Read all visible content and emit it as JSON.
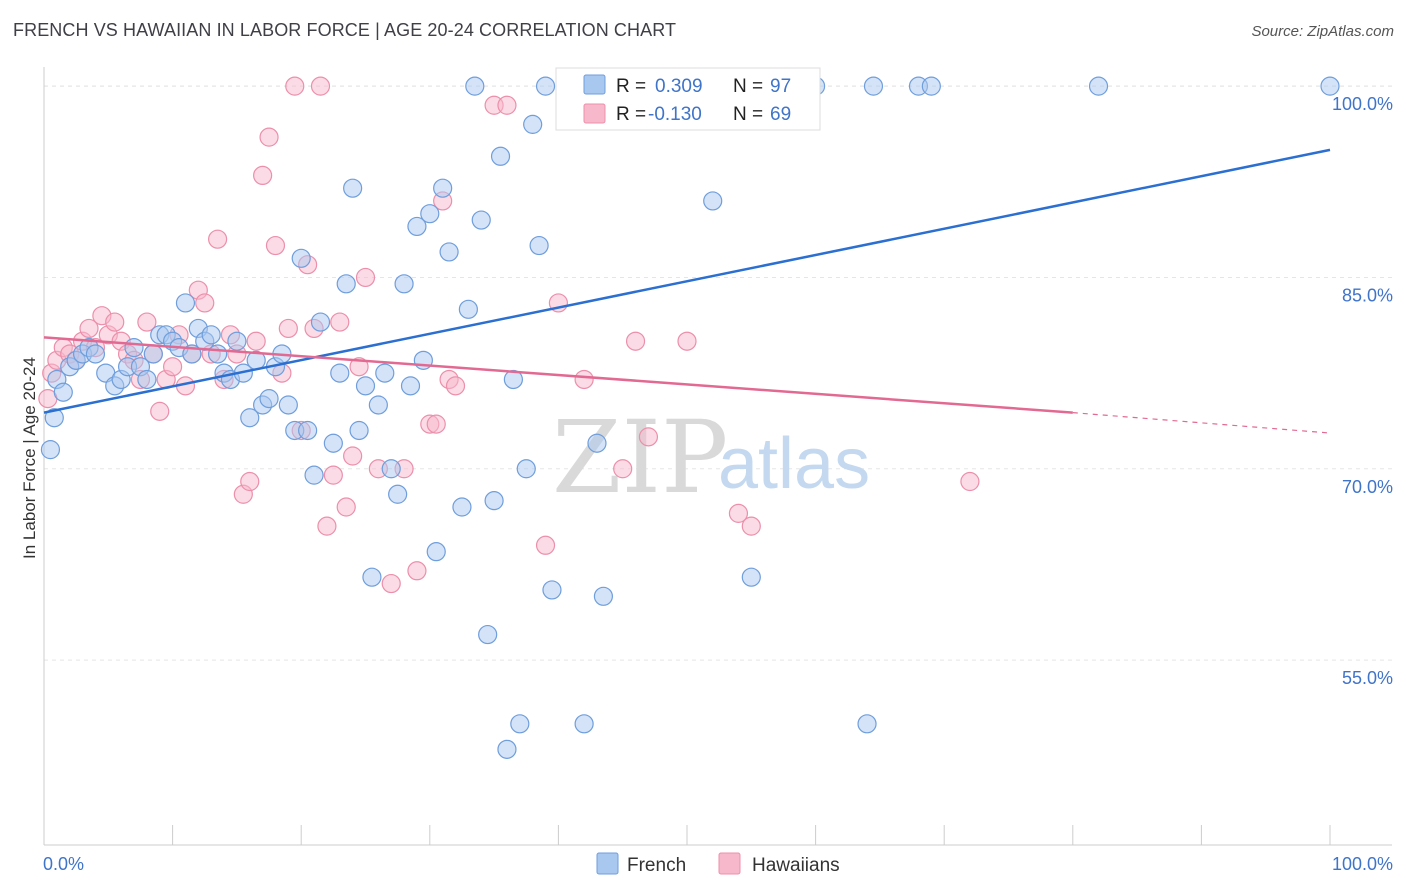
{
  "title": "FRENCH VS HAWAIIAN IN LABOR FORCE | AGE 20-24 CORRELATION CHART",
  "source": "Source: ZipAtlas.com",
  "watermark": {
    "zip": "ZIP",
    "atlas": "atlas"
  },
  "legend": {
    "rows": [
      {
        "r_label": "R =",
        "r_value": "0.309",
        "n_label": "N =",
        "n_value": "97"
      },
      {
        "r_label": "R =",
        "r_value": "-0.130",
        "n_label": "N =",
        "n_value": "69"
      }
    ]
  },
  "colors": {
    "french_fill": "#a9c8ef",
    "french_stroke": "#6f9edc",
    "french_line": "#2b6fd0",
    "hawaiian_fill": "#f7b8cb",
    "hawaiian_stroke": "#ec8fab",
    "hawaiian_line": "#e26a92",
    "tick_label": "#3f74c9"
  },
  "chart_data": {
    "type": "scatter",
    "title": "FRENCH VS HAWAIIAN IN LABOR FORCE | AGE 20-24 CORRELATION CHART",
    "xlabel": "",
    "ylabel": "In Labor Force | Age 20-24",
    "xlim": [
      0,
      100
    ],
    "ylim": [
      40.5,
      101.5
    ],
    "x_tick_labels": [
      "0.0%",
      "100.0%"
    ],
    "y_ticks": [
      100,
      85,
      70,
      55
    ],
    "y_tick_labels": [
      "100.0%",
      "85.0%",
      "70.0%",
      "55.0%"
    ],
    "grid": true,
    "legend_position": "top-center",
    "series": [
      {
        "name": "French",
        "r": 0.309,
        "n": 97,
        "trend": {
          "x": [
            0,
            100
          ],
          "y": [
            74.4,
            95.0
          ]
        },
        "points": [
          [
            0.5,
            71.5
          ],
          [
            0.8,
            74.0
          ],
          [
            1.0,
            77.0
          ],
          [
            1.5,
            76.0
          ],
          [
            2.0,
            78.0
          ],
          [
            2.5,
            78.5
          ],
          [
            3.0,
            79.0
          ],
          [
            3.5,
            79.5
          ],
          [
            4.0,
            79.0
          ],
          [
            4.8,
            77.5
          ],
          [
            5.5,
            76.5
          ],
          [
            6.0,
            77.0
          ],
          [
            6.5,
            78.0
          ],
          [
            7.0,
            79.5
          ],
          [
            7.5,
            78.0
          ],
          [
            8.0,
            77.0
          ],
          [
            8.5,
            79.0
          ],
          [
            9.0,
            80.5
          ],
          [
            9.5,
            80.5
          ],
          [
            10.0,
            80.0
          ],
          [
            10.5,
            79.5
          ],
          [
            11.0,
            83.0
          ],
          [
            11.5,
            79.0
          ],
          [
            12.0,
            81.0
          ],
          [
            12.5,
            80.0
          ],
          [
            13.0,
            80.5
          ],
          [
            13.5,
            79.0
          ],
          [
            14.0,
            77.5
          ],
          [
            14.5,
            77.0
          ],
          [
            15.0,
            80.0
          ],
          [
            15.5,
            77.5
          ],
          [
            16.0,
            74.0
          ],
          [
            16.5,
            78.5
          ],
          [
            17.0,
            75.0
          ],
          [
            17.5,
            75.5
          ],
          [
            18.0,
            78.0
          ],
          [
            18.5,
            79.0
          ],
          [
            19.0,
            75.0
          ],
          [
            19.5,
            73.0
          ],
          [
            20.0,
            86.5
          ],
          [
            20.5,
            73.0
          ],
          [
            21.0,
            69.5
          ],
          [
            21.5,
            81.5
          ],
          [
            22.5,
            72.0
          ],
          [
            23.0,
            77.5
          ],
          [
            23.5,
            84.5
          ],
          [
            24.0,
            92.0
          ],
          [
            24.5,
            73.0
          ],
          [
            25.0,
            76.5
          ],
          [
            25.5,
            61.5
          ],
          [
            26.0,
            75.0
          ],
          [
            26.5,
            77.5
          ],
          [
            27.0,
            70.0
          ],
          [
            27.5,
            68.0
          ],
          [
            28.0,
            84.5
          ],
          [
            28.5,
            76.5
          ],
          [
            29.0,
            89.0
          ],
          [
            29.5,
            78.5
          ],
          [
            30.0,
            90.0
          ],
          [
            30.5,
            63.5
          ],
          [
            31.0,
            92.0
          ],
          [
            31.5,
            87.0
          ],
          [
            32.5,
            67.0
          ],
          [
            33.0,
            82.5
          ],
          [
            33.5,
            100.0
          ],
          [
            34.0,
            89.5
          ],
          [
            34.5,
            57.0
          ],
          [
            35.0,
            67.5
          ],
          [
            35.5,
            94.5
          ],
          [
            36.0,
            48.0
          ],
          [
            36.5,
            77.0
          ],
          [
            37.0,
            50.0
          ],
          [
            37.5,
            70.0
          ],
          [
            38.0,
            97.0
          ],
          [
            38.5,
            87.5
          ],
          [
            39.0,
            100.0
          ],
          [
            39.5,
            60.5
          ],
          [
            42.0,
            50.0
          ],
          [
            42.5,
            100.0
          ],
          [
            43.0,
            72.0
          ],
          [
            43.5,
            60.0
          ],
          [
            46.0,
            100.0
          ],
          [
            50.0,
            100.0
          ],
          [
            52.0,
            91.0
          ],
          [
            55.0,
            61.5
          ],
          [
            56.0,
            100.0
          ],
          [
            60.0,
            100.0
          ],
          [
            64.0,
            50.0
          ],
          [
            64.5,
            100.0
          ],
          [
            68.0,
            100.0
          ],
          [
            69.0,
            100.0
          ],
          [
            82.0,
            100.0
          ],
          [
            100.0,
            100.0
          ]
        ]
      },
      {
        "name": "Hawaiians",
        "r": -0.13,
        "n": 69,
        "trend": {
          "x": [
            0,
            80
          ],
          "y": [
            80.3,
            74.4
          ]
        },
        "trend_dashed": {
          "x": [
            80,
            100
          ],
          "y": [
            74.4,
            72.8
          ]
        },
        "points": [
          [
            0.3,
            75.5
          ],
          [
            0.6,
            77.5
          ],
          [
            1.0,
            78.5
          ],
          [
            1.5,
            79.5
          ],
          [
            2.0,
            79.0
          ],
          [
            2.5,
            78.5
          ],
          [
            3.0,
            80.0
          ],
          [
            3.5,
            81.0
          ],
          [
            4.0,
            79.5
          ],
          [
            4.5,
            82.0
          ],
          [
            5.0,
            80.5
          ],
          [
            5.5,
            81.5
          ],
          [
            6.0,
            80.0
          ],
          [
            6.5,
            79.0
          ],
          [
            7.0,
            78.5
          ],
          [
            7.5,
            77.0
          ],
          [
            8.0,
            81.5
          ],
          [
            8.5,
            79.0
          ],
          [
            9.0,
            74.5
          ],
          [
            9.5,
            77.0
          ],
          [
            10.0,
            78.0
          ],
          [
            10.5,
            80.5
          ],
          [
            11.0,
            76.5
          ],
          [
            11.5,
            79.0
          ],
          [
            12.0,
            84.0
          ],
          [
            12.5,
            83.0
          ],
          [
            13.0,
            79.0
          ],
          [
            13.5,
            88.0
          ],
          [
            14.0,
            77.0
          ],
          [
            14.5,
            80.5
          ],
          [
            15.0,
            79.0
          ],
          [
            15.5,
            68.0
          ],
          [
            16.0,
            69.0
          ],
          [
            16.5,
            80.0
          ],
          [
            17.0,
            93.0
          ],
          [
            17.5,
            96.0
          ],
          [
            18.0,
            87.5
          ],
          [
            18.5,
            77.5
          ],
          [
            19.0,
            81.0
          ],
          [
            19.5,
            100.0
          ],
          [
            20.0,
            73.0
          ],
          [
            20.5,
            86.0
          ],
          [
            21.0,
            81.0
          ],
          [
            21.5,
            100.0
          ],
          [
            22.0,
            65.5
          ],
          [
            22.5,
            69.5
          ],
          [
            23.0,
            81.5
          ],
          [
            23.5,
            67.0
          ],
          [
            24.0,
            71.0
          ],
          [
            24.5,
            78.0
          ],
          [
            25.0,
            85.0
          ],
          [
            26.0,
            70.0
          ],
          [
            27.0,
            61.0
          ],
          [
            28.0,
            70.0
          ],
          [
            29.0,
            62.0
          ],
          [
            30.0,
            73.5
          ],
          [
            30.5,
            73.5
          ],
          [
            31.0,
            91.0
          ],
          [
            31.5,
            77.0
          ],
          [
            32.0,
            76.5
          ],
          [
            35.0,
            98.5
          ],
          [
            36.0,
            98.5
          ],
          [
            39.0,
            64.0
          ],
          [
            40.0,
            83.0
          ],
          [
            42.0,
            77.0
          ],
          [
            45.0,
            70.0
          ],
          [
            46.0,
            80.0
          ],
          [
            47.0,
            72.5
          ],
          [
            50.0,
            80.0
          ],
          [
            54.0,
            66.5
          ],
          [
            55.0,
            65.5
          ],
          [
            72.0,
            69.0
          ]
        ]
      }
    ]
  }
}
